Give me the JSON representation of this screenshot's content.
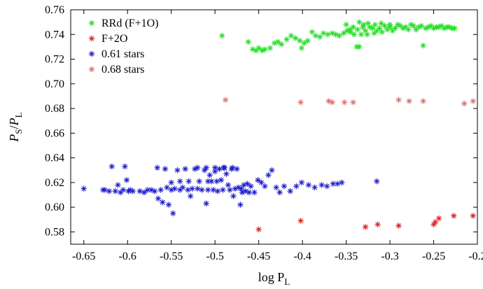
{
  "chart_data": {
    "type": "scatter",
    "xlabel": {
      "main": "log P",
      "sub": "L"
    },
    "ylabel": {
      "num": "P",
      "num_sub": "S",
      "den": "P",
      "den_sub": "L"
    },
    "xlim": [
      -0.665,
      -0.2
    ],
    "ylim": [
      0.57,
      0.76
    ],
    "x_ticks": [
      -0.65,
      -0.6,
      -0.55,
      -0.5,
      -0.45,
      -0.4,
      -0.35,
      -0.3,
      -0.25,
      -0.2
    ],
    "x_tick_labels": [
      "-0.65",
      "-0.6",
      "-0.55",
      "-0.5",
      "-0.45",
      "-0.4",
      "-0.35",
      "-0.3",
      "-0.25",
      "-0.2"
    ],
    "y_ticks": [
      0.58,
      0.6,
      0.62,
      0.64,
      0.66,
      0.68,
      0.7,
      0.72,
      0.74,
      0.76
    ],
    "y_tick_labels": [
      "0.58",
      "0.60",
      "0.62",
      "0.64",
      "0.66",
      "0.68",
      "0.70",
      "0.72",
      "0.74",
      "0.76"
    ],
    "grid": false,
    "legend_position": "top-left",
    "marker": "asterisk",
    "series": [
      {
        "name": "RRd (F+1O)",
        "color": "#22dd22",
        "points": [
          [
            -0.492,
            0.739
          ],
          [
            -0.462,
            0.734
          ],
          [
            -0.457,
            0.728
          ],
          [
            -0.453,
            0.727
          ],
          [
            -0.45,
            0.729
          ],
          [
            -0.446,
            0.727
          ],
          [
            -0.443,
            0.728
          ],
          [
            -0.437,
            0.729
          ],
          [
            -0.432,
            0.733
          ],
          [
            -0.428,
            0.734
          ],
          [
            -0.424,
            0.732
          ],
          [
            -0.418,
            0.736
          ],
          [
            -0.413,
            0.739
          ],
          [
            -0.408,
            0.737
          ],
          [
            -0.403,
            0.735
          ],
          [
            -0.401,
            0.729
          ],
          [
            -0.398,
            0.733
          ],
          [
            -0.394,
            0.735
          ],
          [
            -0.389,
            0.742
          ],
          [
            -0.385,
            0.739
          ],
          [
            -0.38,
            0.738
          ],
          [
            -0.376,
            0.741
          ],
          [
            -0.371,
            0.74
          ],
          [
            -0.366,
            0.741
          ],
          [
            -0.362,
            0.74
          ],
          [
            -0.358,
            0.739
          ],
          [
            -0.353,
            0.741
          ],
          [
            -0.349,
            0.743
          ],
          [
            -0.345,
            0.742
          ],
          [
            -0.341,
            0.74
          ],
          [
            -0.337,
            0.744
          ],
          [
            -0.335,
            0.75
          ],
          [
            -0.333,
            0.74
          ],
          [
            -0.331,
            0.746
          ],
          [
            -0.328,
            0.743
          ],
          [
            -0.326,
            0.74
          ],
          [
            -0.323,
            0.746
          ],
          [
            -0.32,
            0.745
          ],
          [
            -0.318,
            0.741
          ],
          [
            -0.315,
            0.743
          ],
          [
            -0.312,
            0.745
          ],
          [
            -0.309,
            0.742
          ],
          [
            -0.306,
            0.747
          ],
          [
            -0.303,
            0.744
          ],
          [
            -0.3,
            0.746
          ],
          [
            -0.297,
            0.743
          ],
          [
            -0.294,
            0.745
          ],
          [
            -0.291,
            0.748
          ],
          [
            -0.288,
            0.747
          ],
          [
            -0.285,
            0.745
          ],
          [
            -0.282,
            0.746
          ],
          [
            -0.279,
            0.744
          ],
          [
            -0.276,
            0.748
          ],
          [
            -0.273,
            0.747
          ],
          [
            -0.27,
            0.744
          ],
          [
            -0.267,
            0.746
          ],
          [
            -0.264,
            0.747
          ],
          [
            -0.262,
            0.731
          ],
          [
            -0.259,
            0.745
          ],
          [
            -0.256,
            0.746
          ],
          [
            -0.253,
            0.747
          ],
          [
            -0.25,
            0.745
          ],
          [
            -0.247,
            0.746
          ],
          [
            -0.244,
            0.746
          ],
          [
            -0.241,
            0.747
          ],
          [
            -0.238,
            0.745
          ],
          [
            -0.235,
            0.746
          ],
          [
            -0.232,
            0.746
          ],
          [
            -0.229,
            0.745
          ],
          [
            -0.226,
            0.745
          ],
          [
            -0.338,
            0.73
          ],
          [
            -0.335,
            0.73
          ],
          [
            -0.342,
            0.746
          ],
          [
            -0.346,
            0.744
          ],
          [
            -0.35,
            0.748
          ],
          [
            -0.33,
            0.748
          ],
          [
            -0.325,
            0.749
          ],
          [
            -0.317,
            0.748
          ],
          [
            -0.31,
            0.749
          ],
          [
            -0.3,
            0.748
          ]
        ]
      },
      {
        "name": "F+2O",
        "color": "#e02020",
        "points": [
          [
            -0.45,
            0.582
          ],
          [
            -0.402,
            0.589
          ],
          [
            -0.328,
            0.584
          ],
          [
            -0.314,
            0.586
          ],
          [
            -0.29,
            0.585
          ],
          [
            -0.25,
            0.586
          ],
          [
            -0.248,
            0.588
          ],
          [
            -0.244,
            0.591
          ],
          [
            -0.227,
            0.593
          ],
          [
            -0.205,
            0.593
          ]
        ]
      },
      {
        "name": "0.61 stars",
        "color": "#1c1ccc",
        "points": [
          [
            -0.65,
            0.615
          ],
          [
            -0.628,
            0.614
          ],
          [
            -0.626,
            0.614
          ],
          [
            -0.621,
            0.613
          ],
          [
            -0.618,
            0.633
          ],
          [
            -0.614,
            0.613
          ],
          [
            -0.611,
            0.618
          ],
          [
            -0.608,
            0.612
          ],
          [
            -0.605,
            0.614
          ],
          [
            -0.603,
            0.633
          ],
          [
            -0.601,
            0.622
          ],
          [
            -0.599,
            0.613
          ],
          [
            -0.597,
            0.614
          ],
          [
            -0.594,
            0.613
          ],
          [
            -0.586,
            0.613
          ],
          [
            -0.581,
            0.612
          ],
          [
            -0.577,
            0.614
          ],
          [
            -0.573,
            0.614
          ],
          [
            -0.569,
            0.613
          ],
          [
            -0.566,
            0.632
          ],
          [
            -0.565,
            0.607
          ],
          [
            -0.562,
            0.614
          ],
          [
            -0.56,
            0.604
          ],
          [
            -0.557,
            0.631
          ],
          [
            -0.555,
            0.616
          ],
          [
            -0.553,
            0.602
          ],
          [
            -0.55,
            0.614
          ],
          [
            -0.548,
            0.595
          ],
          [
            -0.546,
            0.615
          ],
          [
            -0.543,
            0.63
          ],
          [
            -0.54,
            0.614
          ],
          [
            -0.537,
            0.616
          ],
          [
            -0.534,
            0.631
          ],
          [
            -0.531,
            0.614
          ],
          [
            -0.528,
            0.609
          ],
          [
            -0.526,
            0.615
          ],
          [
            -0.523,
            0.631
          ],
          [
            -0.52,
            0.615
          ],
          [
            -0.518,
            0.621
          ],
          [
            -0.515,
            0.614
          ],
          [
            -0.512,
            0.63
          ],
          [
            -0.51,
            0.603
          ],
          [
            -0.508,
            0.614
          ],
          [
            -0.506,
            0.626
          ],
          [
            -0.504,
            0.621
          ],
          [
            -0.502,
            0.614
          ],
          [
            -0.5,
            0.629
          ],
          [
            -0.497,
            0.613
          ],
          [
            -0.495,
            0.631
          ],
          [
            -0.493,
            0.622
          ],
          [
            -0.491,
            0.614
          ],
          [
            -0.489,
            0.632
          ],
          [
            -0.487,
            0.627
          ],
          [
            -0.485,
            0.618
          ],
          [
            -0.483,
            0.614
          ],
          [
            -0.481,
            0.631
          ],
          [
            -0.479,
            0.609
          ],
          [
            -0.477,
            0.615
          ],
          [
            -0.475,
            0.631
          ],
          [
            -0.473,
            0.616
          ],
          [
            -0.471,
            0.602
          ],
          [
            -0.469,
            0.612
          ],
          [
            -0.467,
            0.618
          ],
          [
            -0.463,
            0.619
          ],
          [
            -0.459,
            0.617
          ],
          [
            -0.455,
            0.612
          ],
          [
            -0.451,
            0.622
          ],
          [
            -0.447,
            0.62
          ],
          [
            -0.443,
            0.617
          ],
          [
            -0.439,
            0.626
          ],
          [
            -0.435,
            0.63
          ],
          [
            -0.43,
            0.616
          ],
          [
            -0.426,
            0.612
          ],
          [
            -0.421,
            0.617
          ],
          [
            -0.414,
            0.613
          ],
          [
            -0.407,
            0.617
          ],
          [
            -0.401,
            0.62
          ],
          [
            -0.393,
            0.618
          ],
          [
            -0.386,
            0.616
          ],
          [
            -0.378,
            0.618
          ],
          [
            -0.372,
            0.617
          ],
          [
            -0.365,
            0.619
          ],
          [
            -0.36,
            0.619
          ],
          [
            -0.355,
            0.62
          ],
          [
            -0.315,
            0.621
          ],
          [
            -0.52,
            0.632
          ],
          [
            -0.51,
            0.632
          ],
          [
            -0.5,
            0.632
          ],
          [
            -0.49,
            0.632
          ],
          [
            -0.48,
            0.632
          ],
          [
            -0.53,
            0.621
          ],
          [
            -0.54,
            0.621
          ],
          [
            -0.55,
            0.62
          ],
          [
            -0.508,
            0.621
          ],
          [
            -0.498,
            0.621
          ],
          [
            -0.47,
            0.615
          ],
          [
            -0.465,
            0.613
          ],
          [
            -0.461,
            0.612
          ]
        ]
      },
      {
        "name": "0.68 stars",
        "color": "#d97070",
        "points": [
          [
            -0.488,
            0.687
          ],
          [
            -0.402,
            0.685
          ],
          [
            -0.37,
            0.686
          ],
          [
            -0.366,
            0.685
          ],
          [
            -0.352,
            0.685
          ],
          [
            -0.342,
            0.685
          ],
          [
            -0.29,
            0.687
          ],
          [
            -0.278,
            0.686
          ],
          [
            -0.262,
            0.686
          ],
          [
            -0.215,
            0.684
          ],
          [
            -0.205,
            0.686
          ]
        ]
      }
    ]
  }
}
